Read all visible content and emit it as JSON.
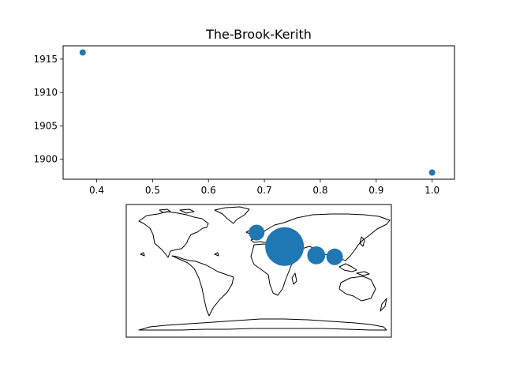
{
  "chart_data": [
    {
      "type": "scatter",
      "title": "The-Brook-Kerith",
      "xlabel": "",
      "ylabel": "",
      "xlim": [
        0.34,
        1.04
      ],
      "ylim": [
        1897,
        1917
      ],
      "x_ticks": [
        0.4,
        0.5,
        0.6,
        0.7,
        0.8,
        0.9,
        1.0
      ],
      "y_ticks": [
        1900,
        1905,
        1910,
        1915
      ],
      "x_tick_labels": [
        "0.4",
        "0.5",
        "0.6",
        "0.7",
        "0.8",
        "0.9",
        "1.0"
      ],
      "y_tick_labels": [
        "1900",
        "1905",
        "1910",
        "1915"
      ],
      "grid": false,
      "color": "#1f77b4",
      "points": [
        {
          "x": 0.375,
          "y": 1916
        },
        {
          "x": 1.0,
          "y": 1898
        }
      ]
    },
    {
      "type": "scatter",
      "subtype": "geographic-bubble-map",
      "projection": "equirectangular",
      "lon_range": [
        -180,
        180
      ],
      "lat_range": [
        -90,
        90
      ],
      "color": "#1f77b4",
      "points": [
        {
          "lon": -3,
          "lat": 52,
          "size": 1
        },
        {
          "lon": 35,
          "lat": 33,
          "size": 6
        },
        {
          "lon": 78,
          "lat": 21,
          "size": 1.3
        },
        {
          "lon": 103,
          "lat": 19,
          "size": 1.1
        }
      ]
    }
  ]
}
